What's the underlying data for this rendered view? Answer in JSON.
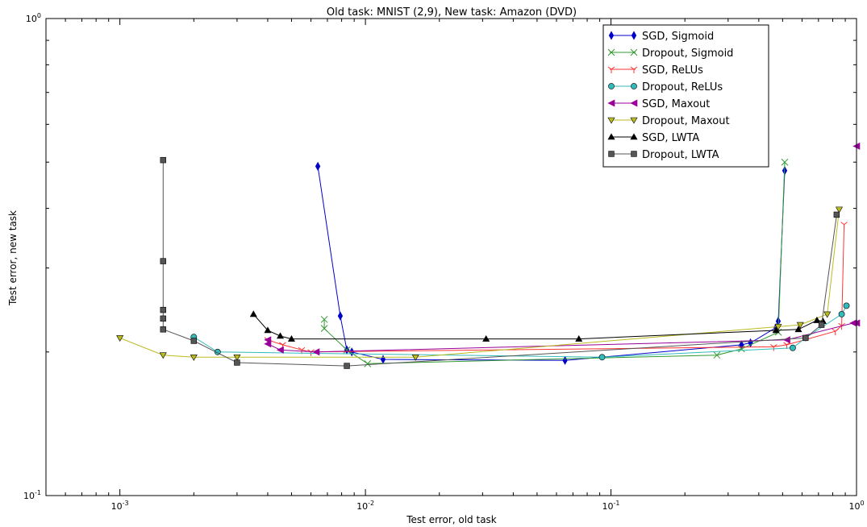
{
  "chart_data": {
    "type": "line",
    "title": "Old task: MNIST (2,9), New task: Amazon (DVD)",
    "xlabel": "Test error, old task",
    "ylabel": "Test error, new task",
    "x_scale": "log",
    "y_scale": "log",
    "xlim": [
      0.0005,
      1.0
    ],
    "ylim": [
      0.1,
      1.0
    ],
    "x_ticks": [
      {
        "value": 0.001,
        "base": "10",
        "exp": "-3"
      },
      {
        "value": 0.01,
        "base": "10",
        "exp": "-2"
      },
      {
        "value": 0.1,
        "base": "10",
        "exp": "-1"
      },
      {
        "value": 1.0,
        "base": "10",
        "exp": "0"
      }
    ],
    "y_ticks": [
      {
        "value": 0.1,
        "base": "10",
        "exp": "-1"
      },
      {
        "value": 1.0,
        "base": "10",
        "exp": "0"
      }
    ],
    "legend_position": "top-right",
    "series": [
      {
        "name": "SGD, Sigmoid",
        "color": "#0000cc",
        "marker": "thin_diamond",
        "x": [
          0.0064,
          0.0079,
          0.0084,
          0.0088,
          0.0118,
          0.065,
          0.34,
          0.37,
          0.47,
          0.48,
          0.51
        ],
        "y": [
          0.49,
          0.238,
          0.202,
          0.2,
          0.193,
          0.192,
          0.207,
          0.209,
          0.225,
          0.232,
          0.48
        ]
      },
      {
        "name": "Dropout, Sigmoid",
        "color": "#339933",
        "marker": "x",
        "x": [
          0.0068,
          0.0068,
          0.0084,
          0.0102,
          0.27,
          0.34,
          0.48,
          0.51
        ],
        "y": [
          0.234,
          0.224,
          0.202,
          0.189,
          0.197,
          0.203,
          0.22,
          0.5
        ]
      },
      {
        "name": "SGD, ReLUs",
        "color": "#ff3333",
        "marker": "tri_down",
        "x": [
          0.004,
          0.0046,
          0.0055,
          0.006,
          0.46,
          0.52,
          0.82,
          0.87,
          0.89
        ],
        "y": [
          0.212,
          0.207,
          0.202,
          0.2,
          0.205,
          0.207,
          0.221,
          0.227,
          0.37
        ]
      },
      {
        "name": "Dropout, ReLUs",
        "color": "#33bbbb",
        "marker": "o",
        "x": [
          0.002,
          0.0025,
          0.092,
          0.55,
          0.62,
          0.87,
          0.91
        ],
        "y": [
          0.215,
          0.2,
          0.195,
          0.204,
          0.214,
          0.24,
          0.25
        ]
      },
      {
        "name": "SGD, Maxout",
        "color": "#990099",
        "marker": "triangle_left",
        "x": [
          0.004,
          0.004,
          0.0045,
          0.0063,
          0.52,
          0.97,
          1.0,
          1.0
        ],
        "y": [
          0.212,
          0.208,
          0.202,
          0.2,
          0.212,
          0.23,
          0.23,
          0.54
        ]
      },
      {
        "name": "Dropout, Maxout",
        "color": "#bbbb22",
        "marker": "triangle_down",
        "x": [
          0.001,
          0.0015,
          0.002,
          0.003,
          0.016,
          0.48,
          0.59,
          0.76,
          0.85
        ],
        "y": [
          0.214,
          0.197,
          0.195,
          0.195,
          0.195,
          0.226,
          0.228,
          0.24,
          0.398
        ]
      },
      {
        "name": "SGD, LWTA",
        "color": "#000000",
        "marker": "triangle_up",
        "x": [
          0.0035,
          0.004,
          0.0045,
          0.005,
          0.031,
          0.074,
          0.47,
          0.58,
          0.69,
          0.73
        ],
        "y": [
          0.24,
          0.222,
          0.216,
          0.213,
          0.213,
          0.213,
          0.222,
          0.223,
          0.233,
          0.232
        ]
      },
      {
        "name": "Dropout, LWTA",
        "color": "#555555",
        "marker": "square",
        "x": [
          0.0015,
          0.0015,
          0.0015,
          0.0015,
          0.0015,
          0.002,
          0.003,
          0.0084,
          0.62,
          0.72,
          0.83
        ],
        "y": [
          0.505,
          0.31,
          0.245,
          0.235,
          0.223,
          0.211,
          0.19,
          0.187,
          0.214,
          0.228,
          0.388
        ]
      }
    ]
  }
}
